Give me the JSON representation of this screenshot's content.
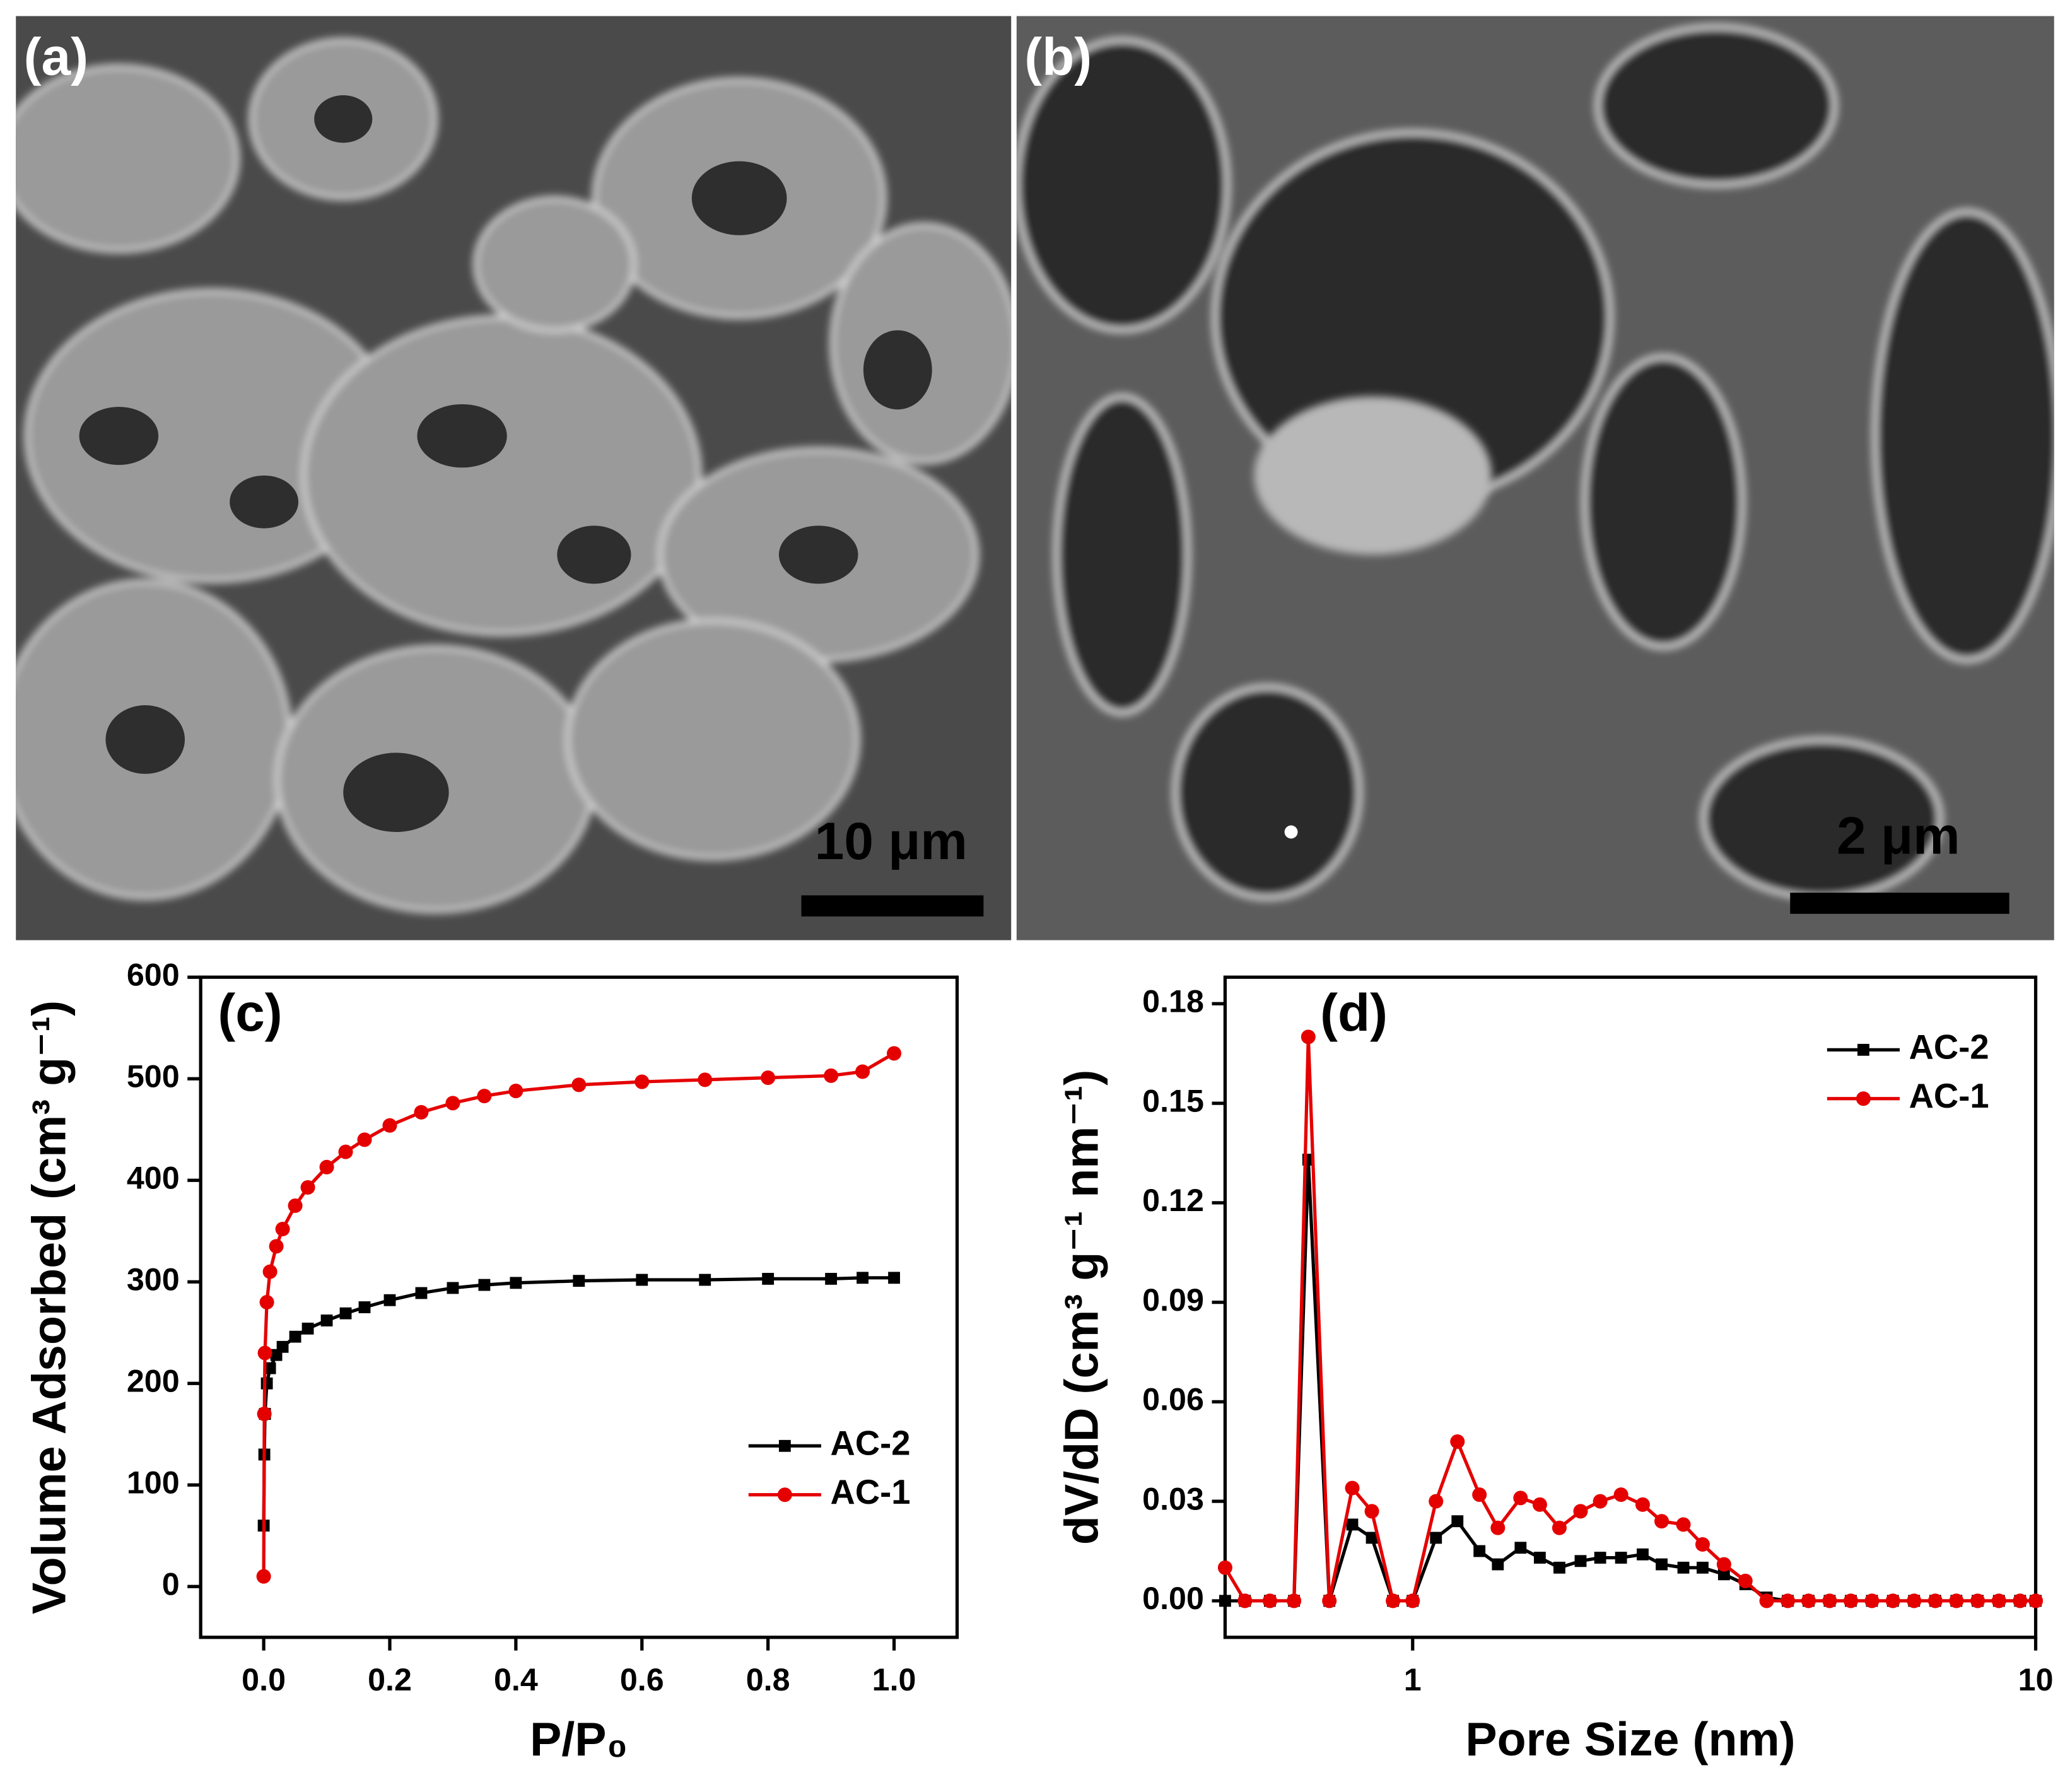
{
  "panels": [
    {
      "label": "(a)",
      "scale_bar": "10 μm"
    },
    {
      "label": "(b)",
      "scale_bar": "2 μm"
    }
  ],
  "chart_data": [
    {
      "type": "line",
      "label": "(c)",
      "x_label": "P/P₀",
      "y_label": "Volume Adsorbed (cm³ g⁻¹)",
      "xlim": [
        -0.1,
        1.1
      ],
      "ylim": [
        -50,
        600
      ],
      "xticks": [
        {
          "value": 0,
          "label": "0.0"
        },
        0.2,
        0.4,
        0.6,
        0.8,
        {
          "value": 1,
          "label": "1.0"
        }
      ],
      "yticks": [
        0,
        100,
        200,
        300,
        400,
        500,
        600
      ],
      "log_x": false,
      "legend": "lower right",
      "x": [
        0,
        0.001,
        0.002,
        0.005,
        0.01,
        0.02,
        0.03,
        0.05,
        0.07,
        0.1,
        0.13,
        0.16,
        0.2,
        0.25,
        0.3,
        0.35,
        0.4,
        0.5,
        0.6,
        0.7,
        0.8,
        0.9,
        0.95,
        1.0
      ],
      "series": [
        {
          "name": "AC-2",
          "color": "#000000",
          "marker": "square",
          "values": [
            60,
            130,
            170,
            200,
            215,
            228,
            236,
            246,
            254,
            262,
            269,
            275,
            282,
            289,
            294,
            297,
            299,
            301,
            302,
            302,
            303,
            303,
            304,
            304
          ]
        },
        {
          "name": "AC-1",
          "color": "#e50000",
          "marker": "circle",
          "values": [
            10,
            170,
            230,
            280,
            310,
            335,
            352,
            375,
            393,
            413,
            428,
            440,
            454,
            467,
            476,
            483,
            488,
            494,
            497,
            499,
            501,
            503,
            507,
            525
          ]
        }
      ]
    },
    {
      "type": "line",
      "label": "(d)",
      "x_label": "Pore Size (nm)",
      "y_label": "dV/dD (cm³ g⁻¹ nm⁻¹)",
      "xlim": [
        0.5,
        10
      ],
      "ylim": [
        -0.011,
        0.188
      ],
      "xticks": [
        1,
        10
      ],
      "yticks": [
        {
          "value": 0,
          "label": "0.00"
        },
        0.03,
        0.06,
        0.09,
        0.12,
        0.15,
        0.18
      ],
      "log_x": true,
      "legend": "upper right",
      "x": [
        0.5,
        0.538,
        0.59,
        0.645,
        0.68,
        0.735,
        0.8,
        0.86,
        0.93,
        1,
        1.09,
        1.18,
        1.28,
        1.37,
        1.49,
        1.6,
        1.72,
        1.86,
        2,
        2.16,
        2.34,
        2.51,
        2.72,
        2.92,
        3.16,
        3.42,
        3.7,
        4,
        4.32,
        4.67,
        5.05,
        5.46,
        5.9,
        6.38,
        6.9,
        7.46,
        8.07,
        8.73,
        9.44,
        10
      ],
      "series": [
        {
          "name": "AC-2",
          "color": "#000000",
          "marker": "square",
          "values": [
            0,
            0,
            0,
            0,
            0.133,
            0,
            0.023,
            0.019,
            0,
            0,
            0.019,
            0.024,
            0.015,
            0.011,
            0.016,
            0.013,
            0.01,
            0.012,
            0.013,
            0.013,
            0.014,
            0.011,
            0.01,
            0.01,
            0.008,
            0.005,
            0.001,
            0,
            0,
            0,
            0,
            0,
            0,
            0,
            0,
            0,
            0,
            0,
            0,
            0
          ]
        },
        {
          "name": "AC-1",
          "color": "#e50000",
          "marker": "circle",
          "values": [
            0.01,
            0,
            0,
            0,
            0.17,
            0,
            0.034,
            0.027,
            0,
            0,
            0.03,
            0.048,
            0.032,
            0.022,
            0.031,
            0.029,
            0.022,
            0.027,
            0.03,
            0.032,
            0.029,
            0.024,
            0.023,
            0.017,
            0.011,
            0.006,
            0,
            0,
            0,
            0,
            0,
            0,
            0,
            0,
            0,
            0,
            0,
            0,
            0,
            0
          ]
        }
      ]
    }
  ]
}
